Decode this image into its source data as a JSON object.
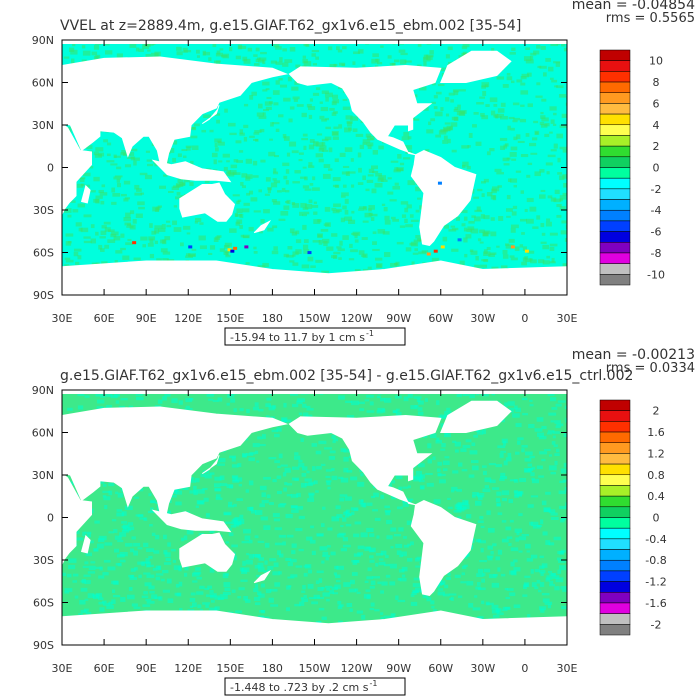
{
  "panels": [
    {
      "title": "VVEL at z=2889.4m, g.e15.GIAF.T62_gx1v6.e15_ebm.002 [35-54]",
      "stats": {
        "mean": "mean = -0.04854",
        "rms": "rms = 0.5565"
      },
      "range_label": "-15.94 to 11.7 by 1 cm s",
      "range_sup": "-1",
      "colorbar": {
        "labels": [
          "10",
          "8",
          "6",
          "4",
          "2",
          "0",
          "-2",
          "-4",
          "-6",
          "-8",
          "-10"
        ],
        "colors": [
          "#c00000",
          "#e81010",
          "#ff3000",
          "#ff6a00",
          "#ff9a20",
          "#ffbb40",
          "#ffe000",
          "#ffff50",
          "#a8f028",
          "#30dd30",
          "#10d060",
          "#00ff9f",
          "#00ffff",
          "#20e0ff",
          "#00b0ff",
          "#0080ff",
          "#0040ff",
          "#0000e0",
          "#8000c0",
          "#e000e0",
          "#c0c0c0",
          "#808080"
        ]
      },
      "dominant_color": "#00ffdd",
      "secondary_color": "#36e36a"
    },
    {
      "title": "g.e15.GIAF.T62_gx1v6.e15_ebm.002 [35-54] - g.e15.GIAF.T62_gx1v6.e15_ctrl.002",
      "stats": {
        "mean": "mean = -0.00213",
        "rms": "rms = 0.0334"
      },
      "range_label": "-1.448 to .723 by .2 cm s",
      "range_sup": "-1",
      "colorbar": {
        "labels": [
          "2",
          "1.6",
          "1.2",
          "0.8",
          "0.4",
          "0",
          "-0.4",
          "-0.8",
          "-1.2",
          "-1.6",
          "-2"
        ],
        "colors": [
          "#c00000",
          "#e81010",
          "#ff3000",
          "#ff6a00",
          "#ff9a20",
          "#ffbb40",
          "#ffe000",
          "#ffff50",
          "#a8f028",
          "#30dd30",
          "#10d060",
          "#00ff9f",
          "#00ffff",
          "#20e0ff",
          "#00b0ff",
          "#0080ff",
          "#0040ff",
          "#0000e0",
          "#8000c0",
          "#e000e0",
          "#c0c0c0",
          "#808080"
        ]
      },
      "dominant_color": "#3de98a",
      "secondary_color": "#00ffd0"
    }
  ],
  "axes": {
    "lat_labels": [
      "90N",
      "60N",
      "30N",
      "0",
      "30S",
      "60S",
      "90S"
    ],
    "lon_labels": [
      "30E",
      "60E",
      "90E",
      "120E",
      "150E",
      "180",
      "150W",
      "120W",
      "90W",
      "60W",
      "30W",
      "0",
      "30E"
    ]
  }
}
